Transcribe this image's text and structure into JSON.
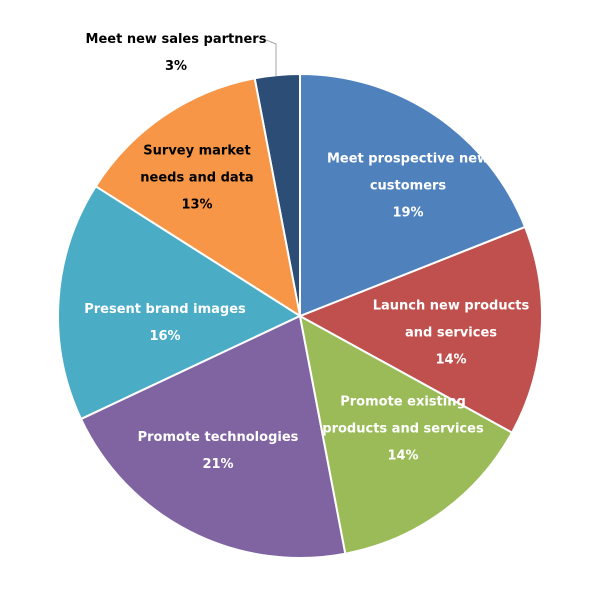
{
  "chart_data": {
    "type": "pie",
    "categories": [
      "Meet prospective new customers",
      "Launch new products and services",
      "Promote existing products and services",
      "Promote technologies",
      "Present brand images",
      "Survey market needs and data",
      "Meet new sales partners"
    ],
    "values": [
      19,
      14,
      14,
      21,
      16,
      13,
      3
    ],
    "value_labels": [
      "19%",
      "14%",
      "14%",
      "21%",
      "16%",
      "13%",
      "3%"
    ],
    "colors": [
      "#4f81bd",
      "#c0504d",
      "#9bbb59",
      "#8064a2",
      "#4bacc6",
      "#f79646",
      "#2c4d75"
    ]
  }
}
